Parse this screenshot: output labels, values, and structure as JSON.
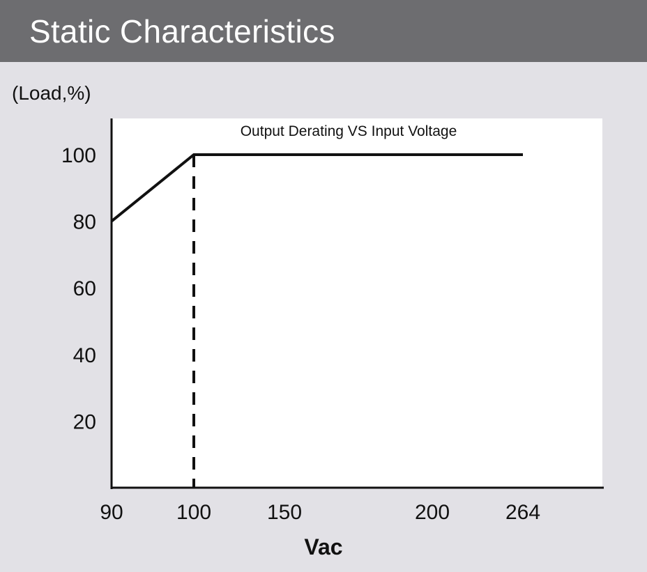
{
  "header": {
    "title": "Static Characteristics"
  },
  "chart_data": {
    "type": "line",
    "title": "Output Derating VS Input Voltage",
    "xlabel": "Vac",
    "ylabel": "(Load,%)",
    "x_ticks": [
      "90",
      "100",
      "150",
      "200",
      "264"
    ],
    "y_ticks": [
      "20",
      "40",
      "60",
      "80",
      "100"
    ],
    "xlim": [
      90,
      300
    ],
    "ylim": [
      0,
      110
    ],
    "series": [
      {
        "x": [
          90,
          100,
          264
        ],
        "y": [
          80,
          100,
          100
        ]
      }
    ],
    "reference_lines": [
      {
        "orientation": "vertical",
        "x": 100,
        "style": "dashed"
      }
    ],
    "grid": false
  },
  "colors": {
    "header_bg": "#6d6d70",
    "page_bg": "#e2e1e6",
    "plot_bg": "#ffffff",
    "line": "#111111"
  }
}
